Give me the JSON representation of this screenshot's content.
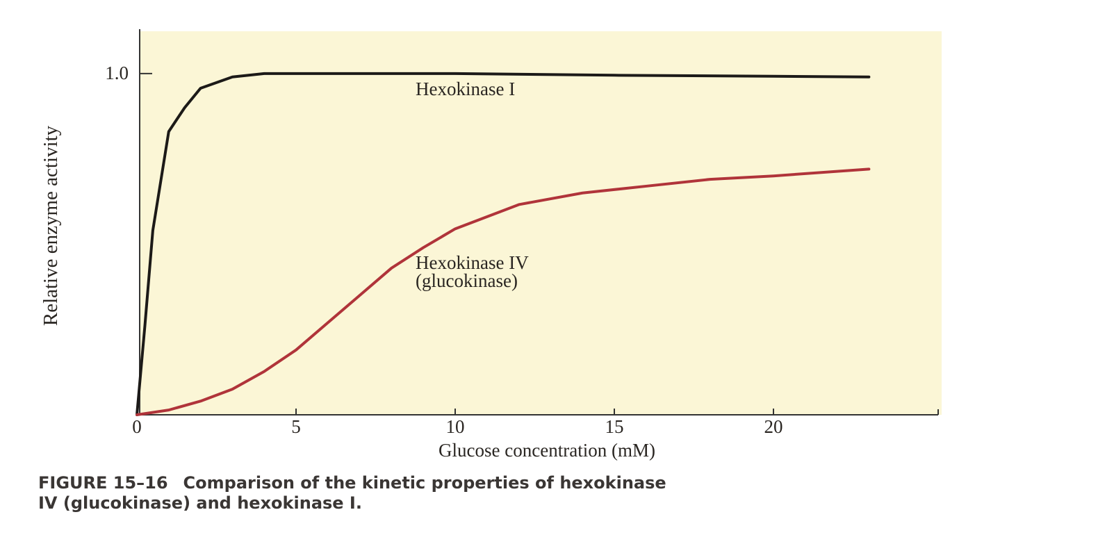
{
  "chart_data": {
    "type": "line",
    "xlabel": "Glucose concentration (mM)",
    "ylabel": "Relative enzyme activity",
    "xlim": [
      0,
      25
    ],
    "xticks": [
      0,
      5,
      10,
      15,
      20
    ],
    "ylim": [
      0,
      1.13
    ],
    "yticks": [
      {
        "value": 1,
        "label": "1.0"
      }
    ],
    "background": "#fbf6d6",
    "series": [
      {
        "name": "Hexokinase I",
        "color": "#1c1a18",
        "x": [
          0,
          0.25,
          0.5,
          1,
          1.5,
          2,
          3,
          4,
          5,
          10,
          15,
          20,
          23
        ],
        "values": [
          0,
          0.26,
          0.54,
          0.83,
          0.9,
          0.957,
          0.99,
          1.0,
          1.0,
          1.0,
          0.995,
          0.992,
          0.99
        ]
      },
      {
        "name": "Hexokinase IV (glucokinase)",
        "color": "#b0343a",
        "x": [
          0,
          1,
          2,
          3,
          4,
          5,
          6,
          7,
          8,
          9,
          10,
          12,
          14,
          16,
          18,
          20,
          23
        ],
        "values": [
          0,
          0.014,
          0.04,
          0.075,
          0.127,
          0.19,
          0.27,
          0.35,
          0.43,
          0.49,
          0.545,
          0.616,
          0.65,
          0.67,
          0.69,
          0.7,
          0.72
        ]
      }
    ],
    "annotations": [
      "Hexokinase I",
      "Hexokinase IV",
      "(glucokinase)"
    ],
    "caption_label": "FIGURE 15–16",
    "caption_lines": [
      "Comparison of the kinetic properties of hexokinase",
      "IV (glucokinase) and hexokinase I."
    ]
  }
}
